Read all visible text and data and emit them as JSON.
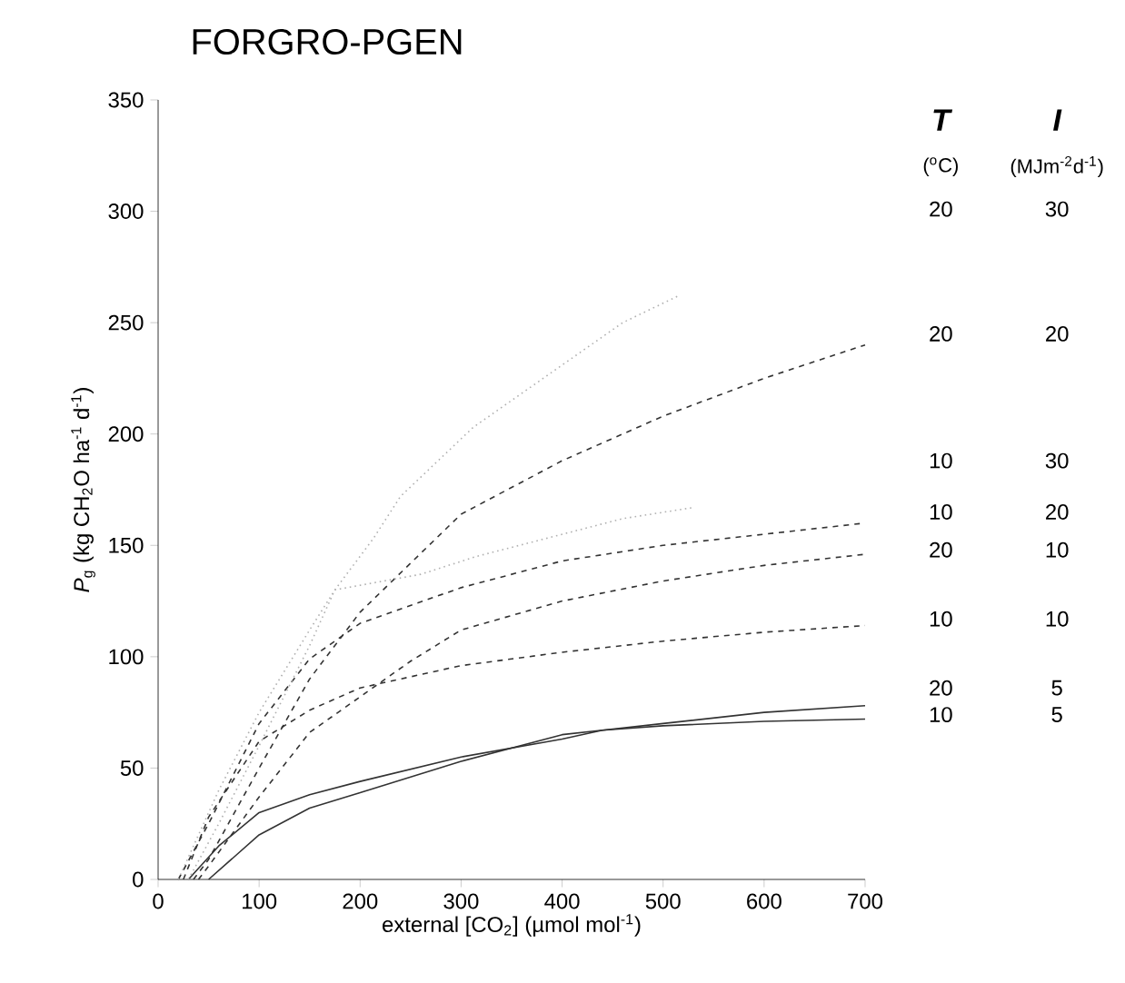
{
  "chart_data": {
    "type": "line",
    "title": "FORGRO-PGEN",
    "xlabel": "external [CO$_{2}$]  (µmol mol$^{-1}$)",
    "ylabel": "*P*$_{g}$  (kg CH$_{2}$O ha$^{-1}$ d$^{-1}$)",
    "xlim": [
      0,
      700
    ],
    "ylim": [
      0,
      350
    ],
    "xticks": [
      0,
      100,
      200,
      300,
      400,
      500,
      600,
      700
    ],
    "yticks": [
      0,
      50,
      100,
      150,
      200,
      250,
      300,
      350
    ],
    "grid": false,
    "marker": "none",
    "annotations": [
      "T",
      "I",
      "($^{o}$C)",
      "(MJm$^{-2}$d$^{-1}$)",
      "20",
      "30",
      "20",
      "20",
      "10",
      "30",
      "10",
      "20",
      "20",
      "10",
      "10",
      "10",
      "20",
      "5",
      "10",
      "5"
    ],
    "series": [
      {
        "color": "#333333",
        "line_style": "solid",
        "x": [
          30,
          60,
          100,
          150,
          200,
          300,
          400,
          440,
          500,
          600,
          700
        ],
        "values": [
          0,
          15,
          30,
          38,
          44,
          55,
          63,
          67,
          69,
          71,
          72
        ]
      },
      {
        "color": "#333333",
        "line_style": "solid",
        "x": [
          50,
          75,
          100,
          150,
          200,
          300,
          400,
          440,
          500,
          600,
          700
        ],
        "values": [
          0,
          10,
          20,
          32,
          39,
          53,
          65,
          67,
          70,
          75,
          78
        ]
      },
      {
        "color": "#333333",
        "line_style": "dashed",
        "x": [
          25,
          50,
          100,
          150,
          200,
          300,
          400,
          500,
          600,
          700
        ],
        "values": [
          0,
          28,
          62,
          76,
          86,
          96,
          102,
          107,
          111,
          114
        ]
      },
      {
        "color": "#333333",
        "line_style": "dashed",
        "x": [
          40,
          50,
          100,
          150,
          200,
          250,
          300,
          400,
          500,
          600,
          700
        ],
        "values": [
          0,
          6,
          37,
          66,
          82,
          98,
          112,
          125,
          134,
          141,
          146
        ]
      },
      {
        "color": "#333333",
        "line_style": "dashed",
        "x": [
          20,
          50,
          100,
          150,
          200,
          300,
          400,
          500,
          600,
          700
        ],
        "values": [
          0,
          25,
          70,
          99,
          115,
          131,
          143,
          150,
          155,
          160
        ]
      },
      {
        "color": "#333333",
        "line_style": "dashed",
        "x": [
          35,
          50,
          100,
          150,
          200,
          250,
          300,
          400,
          500,
          600,
          700
        ],
        "values": [
          0,
          9,
          50,
          90,
          120,
          142,
          164,
          188,
          208,
          225,
          240
        ]
      },
      {
        "color": "#b0b0b0",
        "line_style": "dotted",
        "x": [
          20,
          60,
          100,
          150,
          175,
          260,
          315,
          460,
          530
        ],
        "values": [
          0,
          40,
          75,
          112,
          130,
          137,
          145,
          162,
          167
        ]
      },
      {
        "color": "#b0b0b0",
        "line_style": "dotted",
        "x": [
          30,
          60,
          100,
          150,
          175,
          213,
          240,
          312,
          460,
          515
        ],
        "values": [
          0,
          25,
          60,
          105,
          130,
          153,
          172,
          203,
          250,
          262
        ]
      }
    ]
  }
}
